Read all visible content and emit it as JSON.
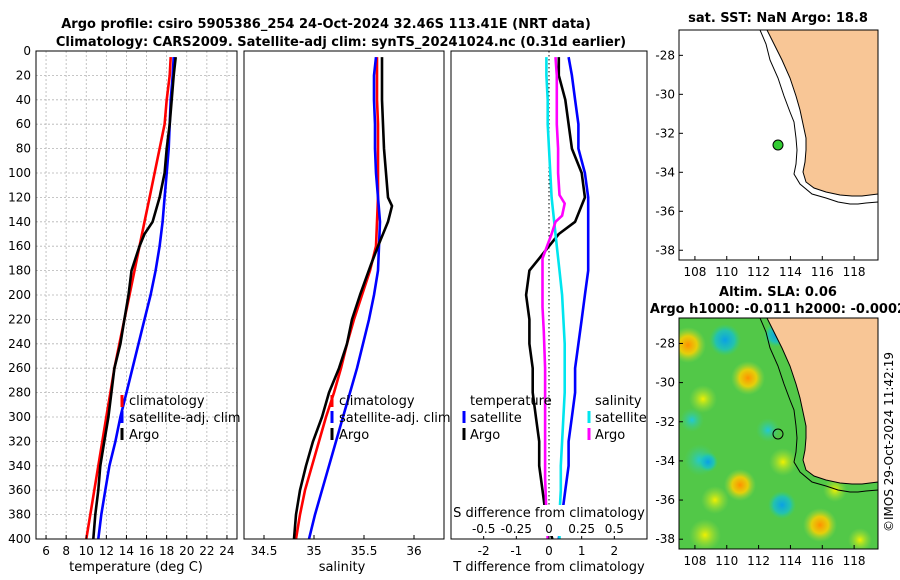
{
  "figure": {
    "title_line1": "Argo profile: csiro 5905386_254 24-Oct-2024 32.46S 113.41E (NRT data)",
    "title_line2": "Climatology: CARS2009. Satellite-adj clim: synTS_20241024.nc (0.31d earlier)",
    "stamp": "©IMOS 29-Oct-2024 11:42:19"
  },
  "colors": {
    "climatology": "#ff0000",
    "satellite": "#0000ff",
    "argo": "#000000",
    "s_satellite": "#00e5ee",
    "s_argo": "#ff00ff",
    "land": "#f8c696",
    "grid": "#b0b0b0"
  },
  "chart_data": [
    {
      "type": "line",
      "id": "temperature",
      "xlabel": "temperature (deg C)",
      "ylabel": "",
      "xlim": [
        5,
        25
      ],
      "ylim": [
        0,
        400
      ],
      "xticks": [
        6,
        8,
        10,
        12,
        14,
        16,
        18,
        20,
        22,
        24
      ],
      "yticks": [
        0,
        20,
        40,
        60,
        80,
        100,
        120,
        140,
        160,
        180,
        200,
        220,
        240,
        260,
        280,
        300,
        320,
        340,
        360,
        380,
        400
      ],
      "legend": [
        "climatology",
        "satellite-adj. clim",
        "Argo"
      ],
      "series": [
        {
          "name": "climatology",
          "color": "#ff0000",
          "points": [
            [
              18.4,
              5
            ],
            [
              18.3,
              20
            ],
            [
              18.0,
              40
            ],
            [
              17.8,
              60
            ],
            [
              17.3,
              80
            ],
            [
              16.8,
              100
            ],
            [
              16.3,
              120
            ],
            [
              15.8,
              140
            ],
            [
              15.3,
              160
            ],
            [
              14.8,
              180
            ],
            [
              14.3,
              200
            ],
            [
              13.8,
              220
            ],
            [
              13.3,
              240
            ],
            [
              12.8,
              260
            ],
            [
              12.4,
              280
            ],
            [
              12.0,
              300
            ],
            [
              11.6,
              320
            ],
            [
              11.2,
              340
            ],
            [
              10.8,
              360
            ],
            [
              10.4,
              380
            ],
            [
              10.0,
              400
            ]
          ]
        },
        {
          "name": "satellite-adj. clim",
          "color": "#0000ff",
          "points": [
            [
              18.7,
              5
            ],
            [
              18.6,
              20
            ],
            [
              18.4,
              40
            ],
            [
              18.3,
              60
            ],
            [
              18.2,
              80
            ],
            [
              18.0,
              100
            ],
            [
              17.8,
              120
            ],
            [
              17.6,
              140
            ],
            [
              17.3,
              160
            ],
            [
              16.9,
              180
            ],
            [
              16.4,
              200
            ],
            [
              15.8,
              220
            ],
            [
              15.2,
              240
            ],
            [
              14.6,
              260
            ],
            [
              14.0,
              280
            ],
            [
              13.4,
              300
            ],
            [
              12.9,
              320
            ],
            [
              12.3,
              340
            ],
            [
              11.9,
              360
            ],
            [
              11.5,
              380
            ],
            [
              11.2,
              400
            ]
          ]
        },
        {
          "name": "Argo",
          "color": "#000000",
          "points": [
            [
              18.9,
              5
            ],
            [
              18.7,
              20
            ],
            [
              18.5,
              40
            ],
            [
              18.3,
              60
            ],
            [
              18.0,
              80
            ],
            [
              17.8,
              100
            ],
            [
              17.3,
              120
            ],
            [
              16.6,
              140
            ],
            [
              15.8,
              150
            ],
            [
              15.3,
              160
            ],
            [
              14.9,
              170
            ],
            [
              14.5,
              180
            ],
            [
              14.2,
              200
            ],
            [
              13.8,
              220
            ],
            [
              13.4,
              240
            ],
            [
              12.8,
              260
            ],
            [
              12.5,
              280
            ],
            [
              12.2,
              300
            ],
            [
              11.8,
              320
            ],
            [
              11.4,
              340
            ],
            [
              11.2,
              360
            ],
            [
              10.9,
              380
            ],
            [
              10.7,
              400
            ]
          ]
        }
      ]
    },
    {
      "type": "line",
      "id": "salinity",
      "xlabel": "salinity",
      "xlim": [
        34.3,
        36.3
      ],
      "ylim": [
        0,
        400
      ],
      "xticks": [
        34.5,
        35,
        35.5,
        36
      ],
      "xticklabels": [
        "34.5",
        "35",
        "35.5",
        "36"
      ],
      "legend": [
        "climatology",
        "satellite-adj. clim",
        "Argo"
      ],
      "series": [
        {
          "name": "climatology",
          "color": "#ff0000",
          "points": [
            [
              35.63,
              5
            ],
            [
              35.63,
              20
            ],
            [
              35.63,
              40
            ],
            [
              35.64,
              60
            ],
            [
              35.64,
              80
            ],
            [
              35.64,
              100
            ],
            [
              35.64,
              120
            ],
            [
              35.63,
              140
            ],
            [
              35.62,
              160
            ],
            [
              35.56,
              180
            ],
            [
              35.48,
              200
            ],
            [
              35.4,
              220
            ],
            [
              35.33,
              240
            ],
            [
              35.27,
              260
            ],
            [
              35.2,
              280
            ],
            [
              35.12,
              300
            ],
            [
              35.05,
              320
            ],
            [
              34.98,
              340
            ],
            [
              34.91,
              360
            ],
            [
              34.86,
              380
            ],
            [
              34.82,
              400
            ]
          ]
        },
        {
          "name": "satellite-adj. clim",
          "color": "#0000ff",
          "points": [
            [
              35.62,
              5
            ],
            [
              35.6,
              20
            ],
            [
              35.6,
              40
            ],
            [
              35.61,
              60
            ],
            [
              35.61,
              80
            ],
            [
              35.62,
              100
            ],
            [
              35.64,
              120
            ],
            [
              35.66,
              140
            ],
            [
              35.65,
              160
            ],
            [
              35.64,
              180
            ],
            [
              35.6,
              200
            ],
            [
              35.55,
              220
            ],
            [
              35.49,
              240
            ],
            [
              35.43,
              260
            ],
            [
              35.36,
              280
            ],
            [
              35.29,
              300
            ],
            [
              35.22,
              320
            ],
            [
              35.15,
              340
            ],
            [
              35.08,
              360
            ],
            [
              35.01,
              380
            ],
            [
              34.95,
              400
            ]
          ]
        },
        {
          "name": "Argo",
          "color": "#000000",
          "points": [
            [
              35.68,
              5
            ],
            [
              35.68,
              20
            ],
            [
              35.68,
              40
            ],
            [
              35.69,
              60
            ],
            [
              35.7,
              80
            ],
            [
              35.72,
              100
            ],
            [
              35.74,
              120
            ],
            [
              35.78,
              127
            ],
            [
              35.74,
              140
            ],
            [
              35.64,
              160
            ],
            [
              35.57,
              175
            ],
            [
              35.46,
              200
            ],
            [
              35.38,
              220
            ],
            [
              35.33,
              240
            ],
            [
              35.25,
              260
            ],
            [
              35.15,
              280
            ],
            [
              35.08,
              300
            ],
            [
              34.99,
              320
            ],
            [
              34.92,
              340
            ],
            [
              34.86,
              360
            ],
            [
              34.82,
              380
            ],
            [
              34.8,
              400
            ]
          ]
        }
      ]
    },
    {
      "type": "line",
      "id": "difference",
      "xlabel": "T difference from climatology",
      "x2label": "S difference from climatology",
      "xlim": [
        -3,
        3
      ],
      "ylim": [
        0,
        400
      ],
      "xticks": [
        -2,
        -1,
        0,
        1,
        2
      ],
      "xticklabels": [
        "-2",
        "-1",
        "0",
        "1",
        "2"
      ],
      "x2ticks": [
        -0.5,
        -0.25,
        0,
        0.25,
        0.5
      ],
      "x2ticklabels": [
        "-0.5",
        "-0.25",
        "0",
        "0.25",
        "0.5"
      ],
      "legend_temperature": {
        "title": "temperature",
        "items": [
          "satellite",
          "Argo"
        ]
      },
      "legend_salinity": {
        "title": "salinity",
        "items": [
          "satellite",
          "Argo"
        ]
      },
      "series": [
        {
          "name": "T satellite",
          "color": "#0000ff",
          "points": [
            [
              0.6,
              5
            ],
            [
              0.7,
              20
            ],
            [
              0.8,
              40
            ],
            [
              0.9,
              60
            ],
            [
              0.9,
              80
            ],
            [
              1.1,
              100
            ],
            [
              1.2,
              120
            ],
            [
              1.2,
              140
            ],
            [
              1.2,
              160
            ],
            [
              1.2,
              180
            ],
            [
              1.1,
              200
            ],
            [
              1.0,
              220
            ],
            [
              0.9,
              240
            ],
            [
              0.8,
              260
            ],
            [
              0.8,
              280
            ],
            [
              0.7,
              300
            ],
            [
              0.6,
              320
            ],
            [
              0.6,
              340
            ],
            [
              0.5,
              360
            ],
            [
              0.4,
              380
            ],
            [
              0.3,
              400
            ]
          ]
        },
        {
          "name": "T Argo",
          "color": "#000000",
          "points": [
            [
              0.3,
              5
            ],
            [
              0.3,
              20
            ],
            [
              0.5,
              40
            ],
            [
              0.6,
              60
            ],
            [
              0.7,
              80
            ],
            [
              1.0,
              100
            ],
            [
              1.1,
              120
            ],
            [
              0.8,
              140
            ],
            [
              0.3,
              150
            ],
            [
              0.0,
              160
            ],
            [
              -0.3,
              170
            ],
            [
              -0.6,
              180
            ],
            [
              -0.7,
              200
            ],
            [
              -0.6,
              220
            ],
            [
              -0.6,
              240
            ],
            [
              -0.5,
              260
            ],
            [
              -0.5,
              280
            ],
            [
              -0.4,
              300
            ],
            [
              -0.3,
              320
            ],
            [
              -0.3,
              340
            ],
            [
              -0.2,
              360
            ],
            [
              -0.1,
              380
            ],
            [
              0.1,
              400
            ]
          ]
        },
        {
          "name": "S satellite",
          "color": "#00e5ee",
          "points": [
            [
              -0.02,
              5
            ],
            [
              -0.02,
              20
            ],
            [
              -0.01,
              40
            ],
            [
              -0.01,
              60
            ],
            [
              0.0,
              80
            ],
            [
              0.01,
              100
            ],
            [
              0.02,
              120
            ],
            [
              0.04,
              140
            ],
            [
              0.06,
              160
            ],
            [
              0.08,
              180
            ],
            [
              0.1,
              200
            ],
            [
              0.11,
              220
            ],
            [
              0.12,
              240
            ],
            [
              0.12,
              260
            ],
            [
              0.12,
              280
            ],
            [
              0.11,
              300
            ],
            [
              0.1,
              320
            ],
            [
              0.09,
              340
            ],
            [
              0.09,
              360
            ],
            [
              0.08,
              380
            ],
            [
              0.08,
              400
            ]
          ]
        },
        {
          "name": "S Argo",
          "color": "#ff00ff",
          "points": [
            [
              0.05,
              5
            ],
            [
              0.06,
              20
            ],
            [
              0.06,
              40
            ],
            [
              0.06,
              60
            ],
            [
              0.07,
              80
            ],
            [
              0.07,
              100
            ],
            [
              0.08,
              118
            ],
            [
              0.12,
              125
            ],
            [
              0.1,
              135
            ],
            [
              0.05,
              140
            ],
            [
              0.02,
              150
            ],
            [
              -0.05,
              170
            ],
            [
              -0.05,
              190
            ],
            [
              -0.05,
              210
            ],
            [
              -0.04,
              230
            ],
            [
              -0.03,
              260
            ],
            [
              -0.03,
              290
            ],
            [
              -0.03,
              320
            ],
            [
              -0.03,
              350
            ],
            [
              -0.02,
              380
            ],
            [
              -0.01,
              400
            ]
          ]
        }
      ]
    },
    {
      "type": "map",
      "id": "sst_map",
      "title": "sat. SST: NaN Argo: 18.8",
      "xlim": [
        107,
        119.5
      ],
      "ylim": [
        -38.5,
        -26.7
      ],
      "xticks": [
        108,
        110,
        112,
        114,
        116,
        118
      ],
      "yticks": [
        -28,
        -30,
        -32,
        -34,
        -36,
        -38
      ],
      "profile_location": [
        113.41,
        -32.46
      ],
      "marker_color": "#33cc33"
    },
    {
      "type": "map",
      "id": "sla_map",
      "title_line1": "Altim. SLA: 0.06",
      "title_line2": "Argo h1000: -0.011 h2000: -0.0002",
      "xlim": [
        107,
        119.5
      ],
      "ylim": [
        -38.5,
        -26.7
      ],
      "xticks": [
        108,
        110,
        112,
        114,
        116,
        118
      ],
      "yticks": [
        -28,
        -30,
        -32,
        -34,
        -36,
        -38
      ],
      "profile_location": [
        113.41,
        -32.46
      ]
    }
  ]
}
